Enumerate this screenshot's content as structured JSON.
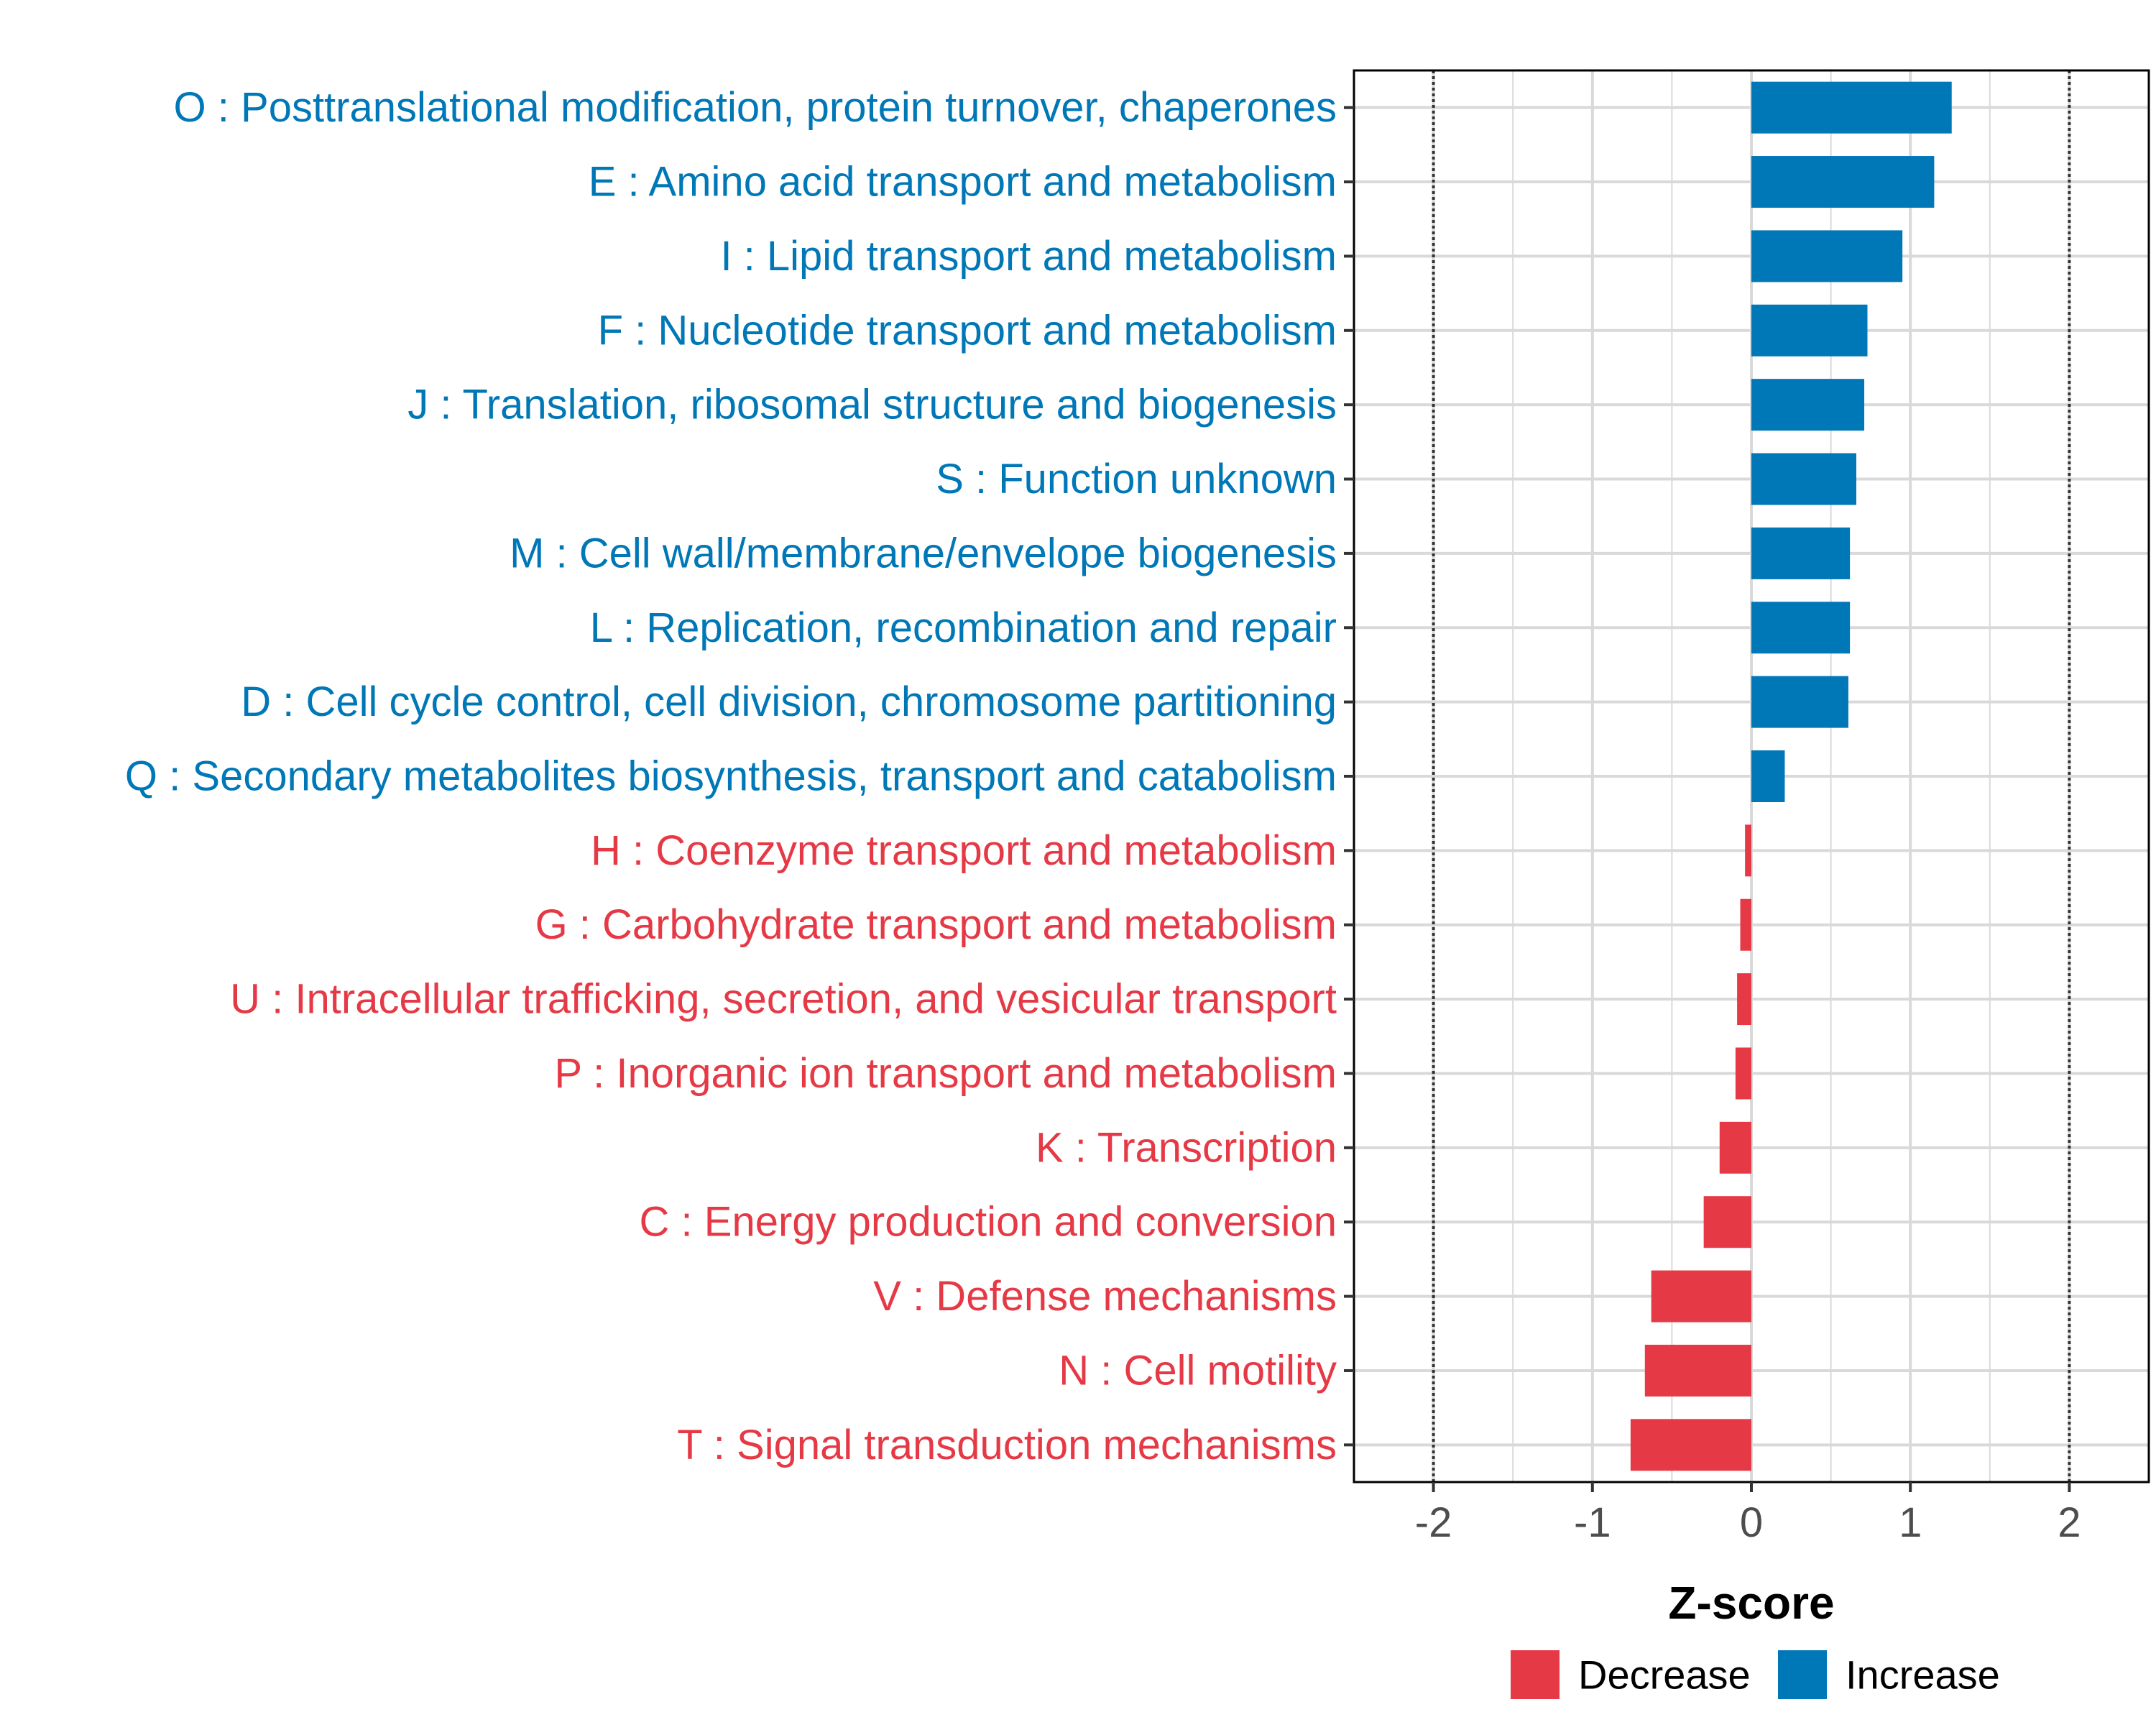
{
  "chart_data": {
    "type": "bar",
    "orientation": "horizontal",
    "xlabel": "Z-score",
    "xlim": [
      -2.5,
      2.5
    ],
    "xticks": [
      -2,
      -1,
      0,
      1,
      2
    ],
    "xtick_labels": [
      "-2",
      "-1",
      "0",
      "1",
      "2"
    ],
    "reference_lines": [
      -2,
      2
    ],
    "grid": true,
    "colors": {
      "Decrease": "#e63946",
      "Increase": "#0077b6",
      "grid": "#d9d9d9",
      "axis": "#000000"
    },
    "categories": [
      "O : Posttranslational modification, protein turnover, chaperones",
      "E : Amino acid transport and metabolism",
      "I : Lipid transport and metabolism",
      "F : Nucleotide transport and metabolism",
      "J : Translation, ribosomal structure and biogenesis",
      "S : Function unknown",
      "M : Cell wall/membrane/envelope biogenesis",
      "L : Replication, recombination and repair",
      "D : Cell cycle control, cell division, chromosome partitioning",
      "Q : Secondary metabolites biosynthesis, transport and catabolism",
      "H : Coenzyme transport and metabolism",
      "G : Carbohydrate transport and metabolism",
      "U : Intracellular trafficking, secretion, and vesicular transport",
      "P : Inorganic ion transport and metabolism",
      "K : Transcription",
      "C : Energy production and conversion",
      "V : Defense mechanisms",
      "N : Cell motility",
      "T : Signal transduction mechanisms"
    ],
    "values": [
      1.26,
      1.15,
      0.95,
      0.73,
      0.71,
      0.66,
      0.62,
      0.62,
      0.61,
      0.21,
      -0.04,
      -0.07,
      -0.09,
      -0.1,
      -0.2,
      -0.3,
      -0.63,
      -0.67,
      -0.76
    ],
    "groups": [
      "Increase",
      "Increase",
      "Increase",
      "Increase",
      "Increase",
      "Increase",
      "Increase",
      "Increase",
      "Increase",
      "Increase",
      "Decrease",
      "Decrease",
      "Decrease",
      "Decrease",
      "Decrease",
      "Decrease",
      "Decrease",
      "Decrease",
      "Decrease"
    ],
    "legend": {
      "position": "bottom",
      "entries": [
        "Decrease",
        "Increase"
      ]
    }
  }
}
